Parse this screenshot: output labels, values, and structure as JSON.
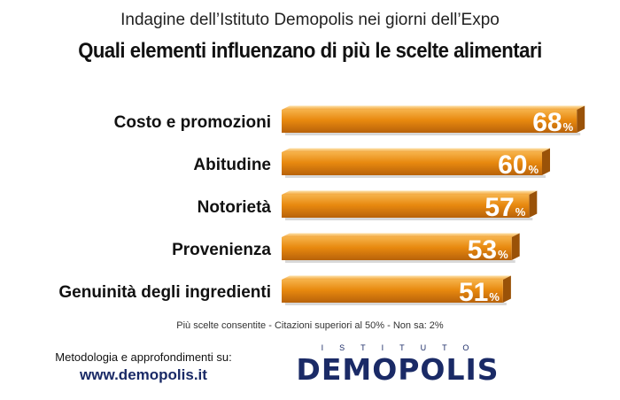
{
  "header": {
    "subtitle": "Indagine dell’Istituto Demopolis nei giorni dell’Expo",
    "title": "Quali elementi influenzano di più le scelte alimentari"
  },
  "chart_data": {
    "type": "bar",
    "orientation": "horizontal",
    "categories": [
      "Costo e promozioni",
      "Abitudine",
      "Notorietà",
      "Provenienza",
      "Genuinità degli ingredienti"
    ],
    "values": [
      68,
      60,
      57,
      53,
      51
    ],
    "value_suffix": "%",
    "bar_color": "#e8890f",
    "title": "Quali elementi influenzano di più le scelte alimentari",
    "subtitle": "Indagine dell’Istituto Demopolis nei giorni dell’Expo",
    "xlim": [
      0,
      100
    ],
    "grid": false,
    "legend": "none"
  },
  "footer": {
    "note": "Più scelte consentite - Citazioni superiori al 50% - Non sa: 2%",
    "method": "Metodologia e approfondimenti su:",
    "url": "www.demopolis.it"
  },
  "logo": {
    "top_text": "ISTITUTO",
    "main_text": "DEMOPOLIS",
    "color": "#1a2a66"
  }
}
